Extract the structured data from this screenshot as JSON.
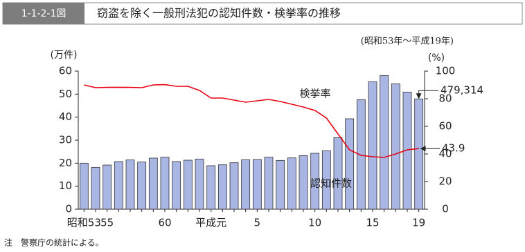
{
  "chart_data": {
    "type": "bar",
    "figure_number": "1-1-2-1図",
    "title": "窃盗を除く一般刑法犯の認知件数・検挙率の推移",
    "subtitle": "(昭和53年～平成19年)",
    "y_label": "(万件)",
    "y2_label": "(%)",
    "note": "注　警察庁の統計による。",
    "categories": [
      "昭和53",
      null,
      "55",
      null,
      null,
      null,
      null,
      "60",
      null,
      null,
      null,
      "平成元",
      null,
      null,
      null,
      "5",
      null,
      null,
      null,
      null,
      "10",
      null,
      null,
      null,
      null,
      "15",
      null,
      null,
      null,
      "19"
    ],
    "series": [
      {
        "name": "認知件数",
        "type": "bar",
        "color": "#a9b5e3",
        "values": [
          20.0,
          18.2,
          19.2,
          20.7,
          21.4,
          20.5,
          22.2,
          22.6,
          20.7,
          21.3,
          21.8,
          18.9,
          19.3,
          20.2,
          21.5,
          21.6,
          22.6,
          21.2,
          22.3,
          23.3,
          24.3,
          25.4,
          31.1,
          39.3,
          47.6,
          55.4,
          58.1,
          54.5,
          50.9,
          47.9314
        ],
        "value_labels": [
          null,
          null,
          null,
          null,
          null,
          null,
          null,
          null,
          null,
          null,
          null,
          null,
          null,
          null,
          null,
          null,
          null,
          null,
          null,
          null,
          null,
          null,
          null,
          null,
          null,
          null,
          null,
          null,
          null,
          "479,314"
        ]
      },
      {
        "name": "検挙率",
        "type": "line",
        "color": "#e60012",
        "axis": "y2",
        "values": [
          90,
          88,
          88.2,
          88.3,
          88.2,
          88,
          90,
          90.2,
          89,
          89,
          86,
          80.5,
          80.5,
          79,
          77.5,
          78.5,
          79.5,
          78,
          76,
          74,
          71.5,
          66,
          54.5,
          43,
          39,
          38,
          37.5,
          40,
          43,
          43.9
        ],
        "value_labels": [
          null,
          null,
          null,
          null,
          null,
          null,
          null,
          null,
          null,
          null,
          null,
          null,
          null,
          null,
          null,
          null,
          null,
          null,
          null,
          null,
          null,
          null,
          null,
          null,
          null,
          null,
          null,
          null,
          null,
          "43.9"
        ]
      }
    ],
    "ylim": [
      0,
      60
    ],
    "yticks": [
      0,
      10,
      20,
      30,
      40,
      50,
      60
    ],
    "y2lim": [
      0,
      100
    ],
    "y2ticks": [
      0,
      20,
      40,
      60,
      80,
      100
    ]
  }
}
